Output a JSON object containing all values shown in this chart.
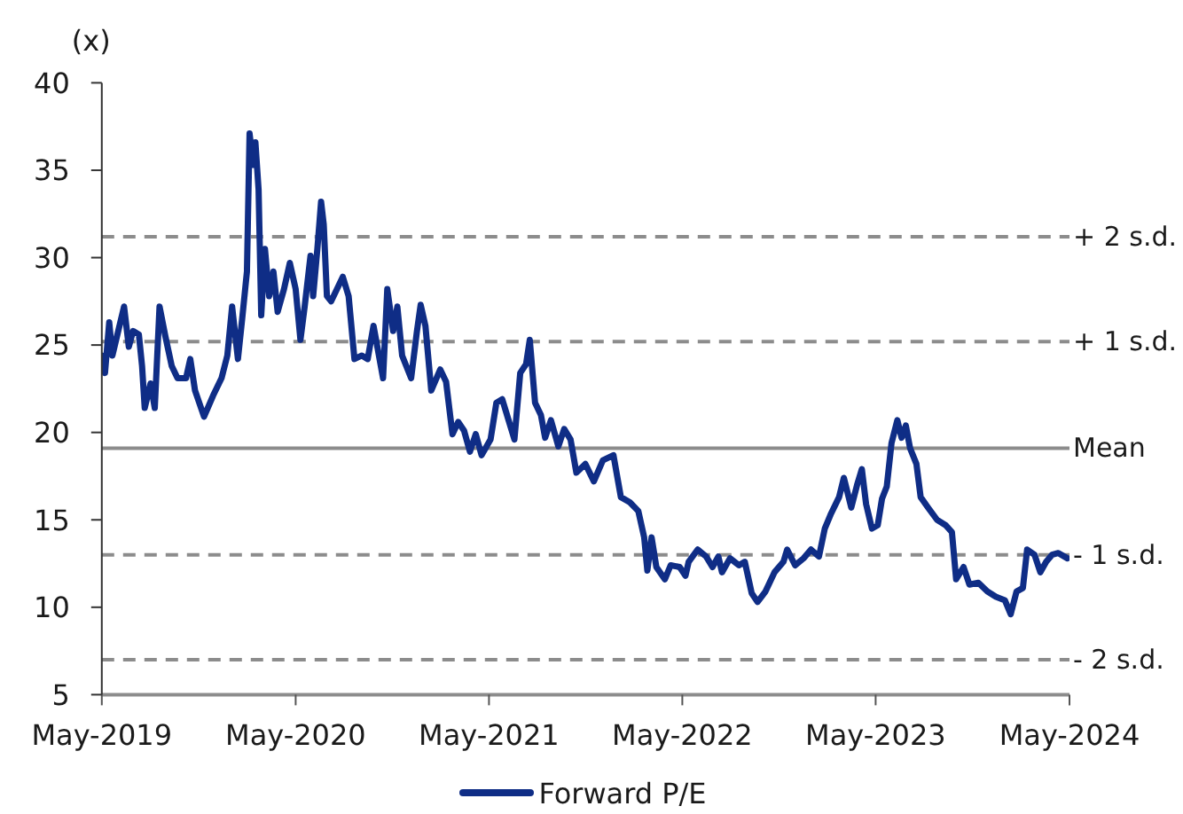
{
  "chart_data": {
    "type": "line",
    "ylabel": "(x)",
    "x": [
      "2019-05-01",
      "2019-05-07",
      "2019-05-15",
      "2019-05-21",
      "2019-06-01",
      "2019-06-12",
      "2019-06-21",
      "2019-06-29",
      "2019-07-10",
      "2019-07-16",
      "2019-07-21",
      "2019-08-01",
      "2019-08-09",
      "2019-08-18",
      "2019-08-29",
      "2019-09-10",
      "2019-09-21",
      "2019-10-07",
      "2019-10-15",
      "2019-10-24",
      "2019-11-10",
      "2019-11-27",
      "2019-12-13",
      "2019-12-24",
      "2020-01-02",
      "2020-01-13",
      "2020-01-21",
      "2020-01-30",
      "2020-02-04",
      "2020-02-11",
      "2020-02-15",
      "2020-02-21",
      "2020-02-26",
      "2020-03-04",
      "2020-03-12",
      "2020-03-20",
      "2020-03-28",
      "2020-04-09",
      "2020-04-20",
      "2020-05-01",
      "2020-05-10",
      "2020-05-18",
      "2020-05-29",
      "2020-06-03",
      "2020-06-11",
      "2020-06-18",
      "2020-06-23",
      "2020-06-29",
      "2020-07-07",
      "2020-07-18",
      "2020-07-29",
      "2020-08-09",
      "2020-08-20",
      "2020-09-03",
      "2020-09-14",
      "2020-09-25",
      "2020-10-13",
      "2020-10-21",
      "2020-11-01",
      "2020-11-09",
      "2020-11-18",
      "2020-12-05",
      "2020-12-16",
      "2020-12-23",
      "2021-01-01",
      "2021-01-12",
      "2021-01-29",
      "2021-02-09",
      "2021-02-21",
      "2021-03-04",
      "2021-03-15",
      "2021-03-26",
      "2021-04-06",
      "2021-04-17",
      "2021-05-04",
      "2021-05-15",
      "2021-05-26",
      "2021-06-07",
      "2021-06-18",
      "2021-06-29",
      "2021-07-10",
      "2021-07-17",
      "2021-07-27",
      "2021-08-07",
      "2021-08-15",
      "2021-08-26",
      "2021-09-09",
      "2021-09-20",
      "2021-10-02",
      "2021-10-13",
      "2021-10-30",
      "2021-11-15",
      "2021-12-02",
      "2021-12-22",
      "2022-01-05",
      "2022-01-22",
      "2022-02-07",
      "2022-02-18",
      "2022-02-24",
      "2022-03-04",
      "2022-03-13",
      "2022-03-29",
      "2022-04-09",
      "2022-04-26",
      "2022-05-07",
      "2022-05-13",
      "2022-05-30",
      "2022-06-15",
      "2022-06-27",
      "2022-07-08",
      "2022-07-15",
      "2022-07-30",
      "2022-08-16",
      "2022-08-27",
      "2022-09-09",
      "2022-09-20",
      "2022-10-05",
      "2022-10-22",
      "2022-11-08",
      "2022-11-15",
      "2022-11-30",
      "2022-12-16",
      "2022-12-30",
      "2023-01-14",
      "2023-01-25",
      "2023-02-05",
      "2023-02-21",
      "2023-03-02",
      "2023-03-16",
      "2023-03-27",
      "2023-04-05",
      "2023-04-13",
      "2023-04-24",
      "2023-05-05",
      "2023-05-13",
      "2023-05-22",
      "2023-05-31",
      "2023-06-11",
      "2023-06-19",
      "2023-06-27",
      "2023-07-05",
      "2023-07-17",
      "2023-07-25",
      "2023-08-08",
      "2023-08-25",
      "2023-09-10",
      "2023-09-22",
      "2023-09-30",
      "2023-10-14",
      "2023-10-25",
      "2023-11-11",
      "2023-11-28",
      "2023-12-14",
      "2023-12-31",
      "2024-01-11",
      "2024-01-22",
      "2024-02-03",
      "2024-02-11",
      "2024-02-25",
      "2024-03-07",
      "2024-03-18",
      "2024-03-29",
      "2024-04-10",
      "2024-04-27"
    ],
    "series": [
      {
        "name": "Forward P/E",
        "color": "#0f2d86",
        "values": [
          24.4,
          23.4,
          26.3,
          24.4,
          25.8,
          27.2,
          24.9,
          25.8,
          25.6,
          23.8,
          21.4,
          22.8,
          21.4,
          27.2,
          25.5,
          23.8,
          23.1,
          23.1,
          24.2,
          22.4,
          20.9,
          22.1,
          23.1,
          24.4,
          27.2,
          24.2,
          26.5,
          29.2,
          37.1,
          35.3,
          36.6,
          33.9,
          26.7,
          30.5,
          27.8,
          29.2,
          26.9,
          28.2,
          29.7,
          28.2,
          25.3,
          27.2,
          30.1,
          27.8,
          30.5,
          33.2,
          31.9,
          27.8,
          27.5,
          28.2,
          28.9,
          27.8,
          24.2,
          24.4,
          24.2,
          26.1,
          23.1,
          28.2,
          25.8,
          27.2,
          24.4,
          23.1,
          25.8,
          27.3,
          26.1,
          22.4,
          23.6,
          22.9,
          19.9,
          20.6,
          20.1,
          18.9,
          19.9,
          18.7,
          19.6,
          21.7,
          21.9,
          20.7,
          19.6,
          23.4,
          23.9,
          25.3,
          21.7,
          21.0,
          19.7,
          20.7,
          19.2,
          20.2,
          19.6,
          17.7,
          18.2,
          17.2,
          18.4,
          18.7,
          16.3,
          16.0,
          15.5,
          14.0,
          12.1,
          14.0,
          12.3,
          11.6,
          12.4,
          12.3,
          11.8,
          12.6,
          13.3,
          12.9,
          12.3,
          12.9,
          12.0,
          12.8,
          12.4,
          12.6,
          10.8,
          10.3,
          10.9,
          12.0,
          12.6,
          13.3,
          12.4,
          12.8,
          13.3,
          12.9,
          14.5,
          15.3,
          16.3,
          17.4,
          15.7,
          17.0,
          17.9,
          15.9,
          14.5,
          14.7,
          16.2,
          16.9,
          19.4,
          20.7,
          19.7,
          20.4,
          19.1,
          18.2,
          16.3,
          15.7,
          15.0,
          14.7,
          14.3,
          11.6,
          12.3,
          11.3,
          11.4,
          10.9,
          10.6,
          10.4,
          9.6,
          10.9,
          11.1,
          13.3,
          13.0,
          12.0,
          12.6,
          13.0,
          13.1,
          12.8
        ]
      }
    ],
    "xlim": [
      "2019-05-01",
      "2024-05-01"
    ],
    "xticks": [
      {
        "value": "2019-05-01",
        "label": "May-2019"
      },
      {
        "value": "2020-05-01",
        "label": "May-2020"
      },
      {
        "value": "2021-05-01",
        "label": "May-2021"
      },
      {
        "value": "2022-05-01",
        "label": "May-2022"
      },
      {
        "value": "2023-05-01",
        "label": "May-2023"
      },
      {
        "value": "2024-05-01",
        "label": "May-2024"
      }
    ],
    "ylim": [
      5,
      40
    ],
    "yticks": [
      5,
      10,
      15,
      20,
      25,
      30,
      35,
      40
    ],
    "ref_lines": [
      {
        "axis": "y",
        "value": 31.2,
        "label": "+ 2 s.d.",
        "color": "#8c8c8c",
        "line_style": "dashed"
      },
      {
        "axis": "y",
        "value": 25.2,
        "label": "+ 1 s.d.",
        "color": "#8c8c8c",
        "line_style": "dashed"
      },
      {
        "axis": "y",
        "value": 19.1,
        "label": "Mean",
        "color": "#8c8c8c",
        "line_style": "solid"
      },
      {
        "axis": "y",
        "value": 13.0,
        "label": "- 1 s.d.",
        "color": "#8c8c8c",
        "line_style": "dashed"
      },
      {
        "axis": "y",
        "value": 7.0,
        "label": "- 2 s.d.",
        "color": "#8c8c8c",
        "line_style": "dashed"
      }
    ],
    "legend": "bottom"
  }
}
